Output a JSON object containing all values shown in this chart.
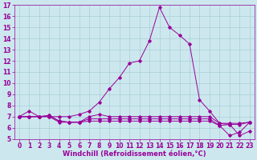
{
  "xlabel": "Windchill (Refroidissement éolien,°C)",
  "background_color": "#cce8ee",
  "grid_color": "#aacdd8",
  "line_color": "#990099",
  "x": [
    0,
    1,
    2,
    3,
    4,
    5,
    6,
    7,
    8,
    9,
    10,
    11,
    12,
    13,
    14,
    15,
    16,
    17,
    18,
    19,
    20,
    21,
    22,
    23
  ],
  "series": [
    [
      7.0,
      7.5,
      7.0,
      7.0,
      7.0,
      7.0,
      7.2,
      7.5,
      8.3,
      9.5,
      10.5,
      11.8,
      12.0,
      13.8,
      16.8,
      15.0,
      14.3,
      13.5,
      8.5,
      7.5,
      6.4,
      6.3,
      5.3,
      5.7
    ],
    [
      7.0,
      7.0,
      7.0,
      7.1,
      6.6,
      6.5,
      6.5,
      7.0,
      7.2,
      7.0,
      7.0,
      7.0,
      7.0,
      7.0,
      7.0,
      7.0,
      7.0,
      7.0,
      7.0,
      7.0,
      6.4,
      6.4,
      6.4,
      6.5
    ],
    [
      7.0,
      7.0,
      7.0,
      7.1,
      6.6,
      6.5,
      6.5,
      6.8,
      6.8,
      6.8,
      6.8,
      6.8,
      6.8,
      6.8,
      6.8,
      6.8,
      6.8,
      6.8,
      6.8,
      6.8,
      6.2,
      5.3,
      5.6,
      6.5
    ],
    [
      7.0,
      7.0,
      7.0,
      7.0,
      6.5,
      6.5,
      6.5,
      6.6,
      6.6,
      6.6,
      6.6,
      6.6,
      6.6,
      6.6,
      6.6,
      6.6,
      6.6,
      6.6,
      6.6,
      6.6,
      6.2,
      6.3,
      6.3,
      6.5
    ]
  ],
  "ylim": [
    5,
    17
  ],
  "xlim": [
    -0.5,
    23.5
  ],
  "yticks": [
    5,
    6,
    7,
    8,
    9,
    10,
    11,
    12,
    13,
    14,
    15,
    16,
    17
  ],
  "xticks": [
    0,
    1,
    2,
    3,
    4,
    5,
    6,
    7,
    8,
    9,
    10,
    11,
    12,
    13,
    14,
    15,
    16,
    17,
    18,
    19,
    20,
    21,
    22,
    23
  ],
  "tick_fontsize": 5.5,
  "xlabel_fontsize": 6.0
}
